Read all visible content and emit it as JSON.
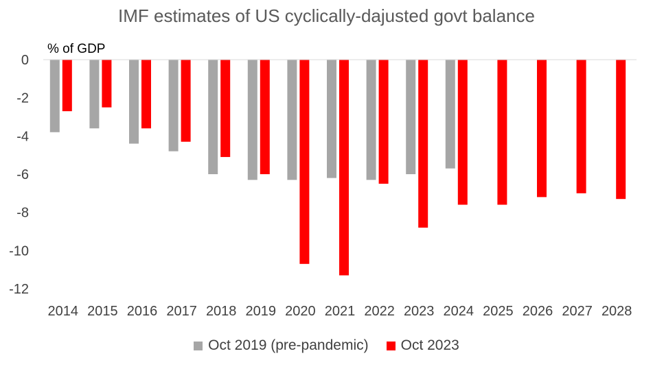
{
  "chart_data": {
    "type": "bar",
    "title": "IMF estimates of US cyclically-dajusted govt balance",
    "ylabel": "% of GDP",
    "xlabel": "",
    "ylim": [
      -12,
      0
    ],
    "yticks": [
      0,
      -2,
      -4,
      -6,
      -8,
      -10,
      -12
    ],
    "grid": false,
    "legend_position": "bottom",
    "categories": [
      "2014",
      "2015",
      "2016",
      "2017",
      "2018",
      "2019",
      "2020",
      "2021",
      "2022",
      "2023",
      "2024",
      "2025",
      "2026",
      "2027",
      "2028"
    ],
    "series": [
      {
        "name": "Oct 2019 (pre-pandemic)",
        "color": "#a6a6a6",
        "values": [
          -3.8,
          -3.6,
          -4.4,
          -4.8,
          -6.0,
          -6.3,
          -6.3,
          -6.2,
          -6.3,
          -6.0,
          -5.7,
          null,
          null,
          null,
          null
        ]
      },
      {
        "name": "Oct 2023",
        "color": "#ff0000",
        "values": [
          -2.7,
          -2.5,
          -3.6,
          -4.3,
          -5.1,
          -6.0,
          -10.7,
          -11.3,
          -6.5,
          -8.8,
          -7.6,
          -7.6,
          -7.2,
          -7.0,
          -7.3
        ]
      }
    ]
  }
}
